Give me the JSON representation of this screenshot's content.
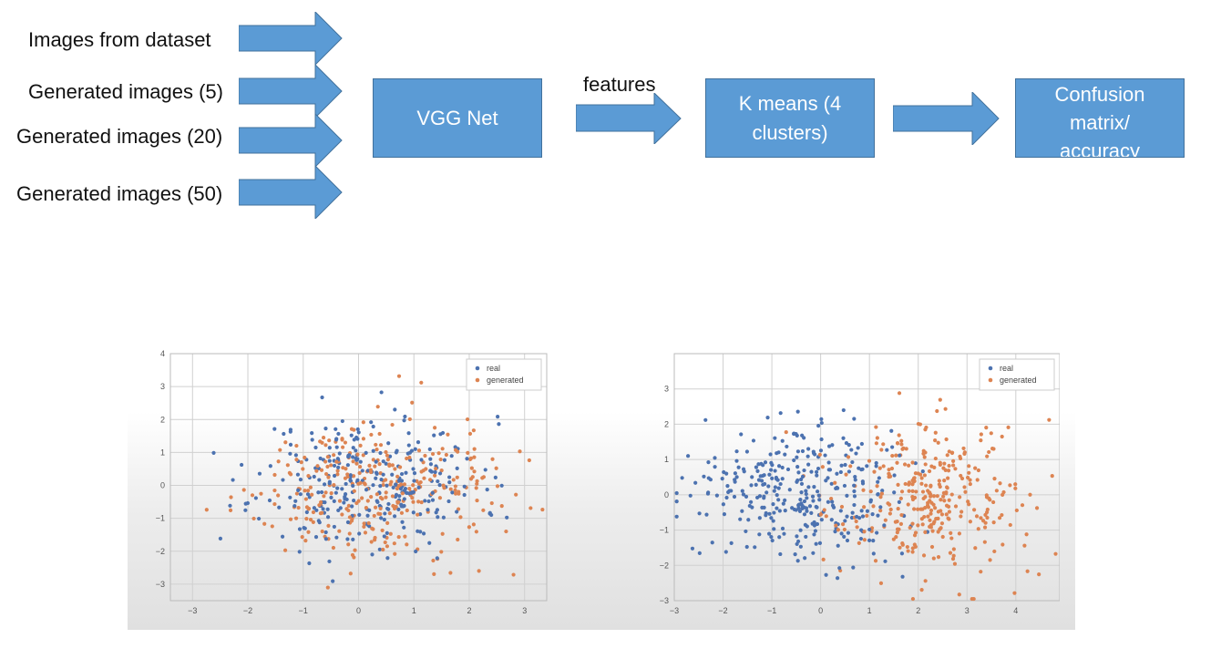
{
  "inputs": [
    {
      "label": "Images from dataset"
    },
    {
      "label": "Generated images (5)"
    },
    {
      "label": "Generated images (20)"
    },
    {
      "label": "Generated images (50)"
    }
  ],
  "boxes": {
    "vgg": "VGG Net",
    "kmeans_line1": "K means (4",
    "kmeans_line2": "clusters)",
    "confusion_line1": "Confusion",
    "confusion_line2": "matrix/",
    "confusion_line3": "accuracy"
  },
  "features_label": "features",
  "colors": {
    "box_fill": "#5b9bd5",
    "box_border": "#41719c",
    "real": "#4c72b0",
    "generated": "#dd8452"
  },
  "chart_data": [
    {
      "type": "scatter",
      "xlim": [
        -3.4,
        3.4
      ],
      "ylim": [
        -3.5,
        4.0
      ],
      "xticks": [
        -3,
        -2,
        -1,
        0,
        1,
        2,
        3
      ],
      "yticks": [
        -3,
        -2,
        -1,
        0,
        1,
        2,
        3,
        4
      ],
      "grid": true,
      "legend": "top-right",
      "series": [
        {
          "name": "real",
          "center": [
            0.2,
            0.1
          ],
          "spread": [
            1.0,
            1.0
          ],
          "count": 300,
          "seed": 11
        },
        {
          "name": "generated",
          "center": [
            0.2,
            -0.1
          ],
          "spread": [
            1.1,
            1.0
          ],
          "count": 320,
          "seed": 29
        }
      ]
    },
    {
      "type": "scatter",
      "xlim": [
        -3.0,
        4.9
      ],
      "ylim": [
        -3.0,
        4.0
      ],
      "xticks": [
        -3,
        -2,
        -1,
        0,
        1,
        2,
        3,
        4
      ],
      "yticks": [
        -3,
        -2,
        -1,
        0,
        1,
        2,
        3
      ],
      "grid": true,
      "legend": "top-right",
      "series": [
        {
          "name": "real",
          "center": [
            -0.3,
            0.1
          ],
          "spread": [
            1.0,
            0.95
          ],
          "count": 330,
          "seed": 5
        },
        {
          "name": "generated",
          "center": [
            2.2,
            -0.1
          ],
          "spread": [
            0.95,
            1.05
          ],
          "count": 330,
          "seed": 17
        }
      ]
    }
  ]
}
